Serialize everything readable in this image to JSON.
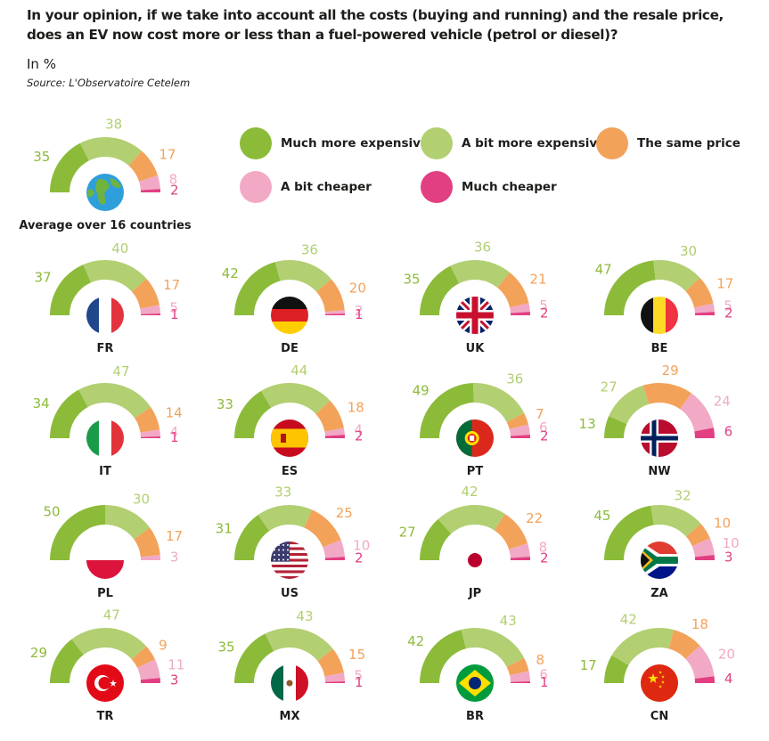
{
  "title_line1": "In your opinion, if we take into account all the costs (buying and running) and the resale price,",
  "title_line2": "does an EV now cost more or less than a fuel-powered vehicle (petrol or diesel)?",
  "unit": "In %",
  "source": "Source: L'Observatoire Cetelem",
  "colors": {
    "much_more": "#8cbb3a",
    "bit_more": "#b2cf72",
    "same": "#f3a25a",
    "bit_cheaper": "#f2a9c5",
    "much_cheaper": "#e23f83",
    "flag_white": "#ffffff"
  },
  "legend": [
    {
      "label": "Much more expensive",
      "color": "#8cbb3a"
    },
    {
      "label": "A bit more expensive",
      "color": "#b2cf72"
    },
    {
      "label": "The same price",
      "color": "#f3a25a"
    },
    {
      "label": "A bit cheaper",
      "color": "#f2a9c5"
    },
    {
      "label": "Much cheaper",
      "color": "#e23f83"
    }
  ],
  "chart_data": {
    "type": "pie",
    "title": "Does an EV now cost more or less than a fuel-powered vehicle? (In %)",
    "subtype": "semi-donut gauges, one per country",
    "series_names": [
      "Much more expensive",
      "A bit more expensive",
      "The same price",
      "A bit cheaper",
      "Much cheaper"
    ],
    "charts": [
      {
        "label": "Average over 16 countries",
        "flag": "globe-icon",
        "values": [
          35,
          38,
          17,
          8,
          2
        ]
      },
      {
        "label": "FR",
        "flag": "france-flag",
        "values": [
          37,
          40,
          17,
          5,
          1
        ]
      },
      {
        "label": "DE",
        "flag": "germany-flag",
        "values": [
          42,
          36,
          20,
          2,
          1
        ]
      },
      {
        "label": "UK",
        "flag": "uk-flag",
        "values": [
          35,
          36,
          21,
          5,
          2
        ]
      },
      {
        "label": "BE",
        "flag": "belgium-flag",
        "values": [
          47,
          30,
          17,
          5,
          2
        ]
      },
      {
        "label": "IT",
        "flag": "italy-flag",
        "values": [
          34,
          47,
          14,
          4,
          1
        ]
      },
      {
        "label": "ES",
        "flag": "spain-flag",
        "values": [
          33,
          44,
          18,
          4,
          2
        ]
      },
      {
        "label": "PT",
        "flag": "portugal-flag",
        "values": [
          49,
          36,
          7,
          6,
          2
        ]
      },
      {
        "label": "NW",
        "flag": "norway-flag",
        "values": [
          13,
          27,
          29,
          24,
          6
        ]
      },
      {
        "label": "PL",
        "flag": "poland-flag",
        "values": [
          50,
          30,
          17,
          3,
          0
        ]
      },
      {
        "label": "US",
        "flag": "usa-flag",
        "values": [
          31,
          33,
          25,
          10,
          2
        ]
      },
      {
        "label": "JP",
        "flag": "japan-flag",
        "values": [
          27,
          42,
          22,
          8,
          2
        ]
      },
      {
        "label": "ZA",
        "flag": "south-africa-flag",
        "values": [
          45,
          32,
          10,
          10,
          3
        ]
      },
      {
        "label": "TR",
        "flag": "turkey-flag",
        "values": [
          29,
          47,
          9,
          11,
          3
        ]
      },
      {
        "label": "MX",
        "flag": "mexico-flag",
        "values": [
          35,
          43,
          15,
          5,
          1
        ]
      },
      {
        "label": "BR",
        "flag": "brazil-flag",
        "values": [
          42,
          43,
          8,
          6,
          1
        ]
      },
      {
        "label": "CN",
        "flag": "china-flag",
        "values": [
          17,
          42,
          18,
          20,
          4
        ]
      }
    ]
  }
}
